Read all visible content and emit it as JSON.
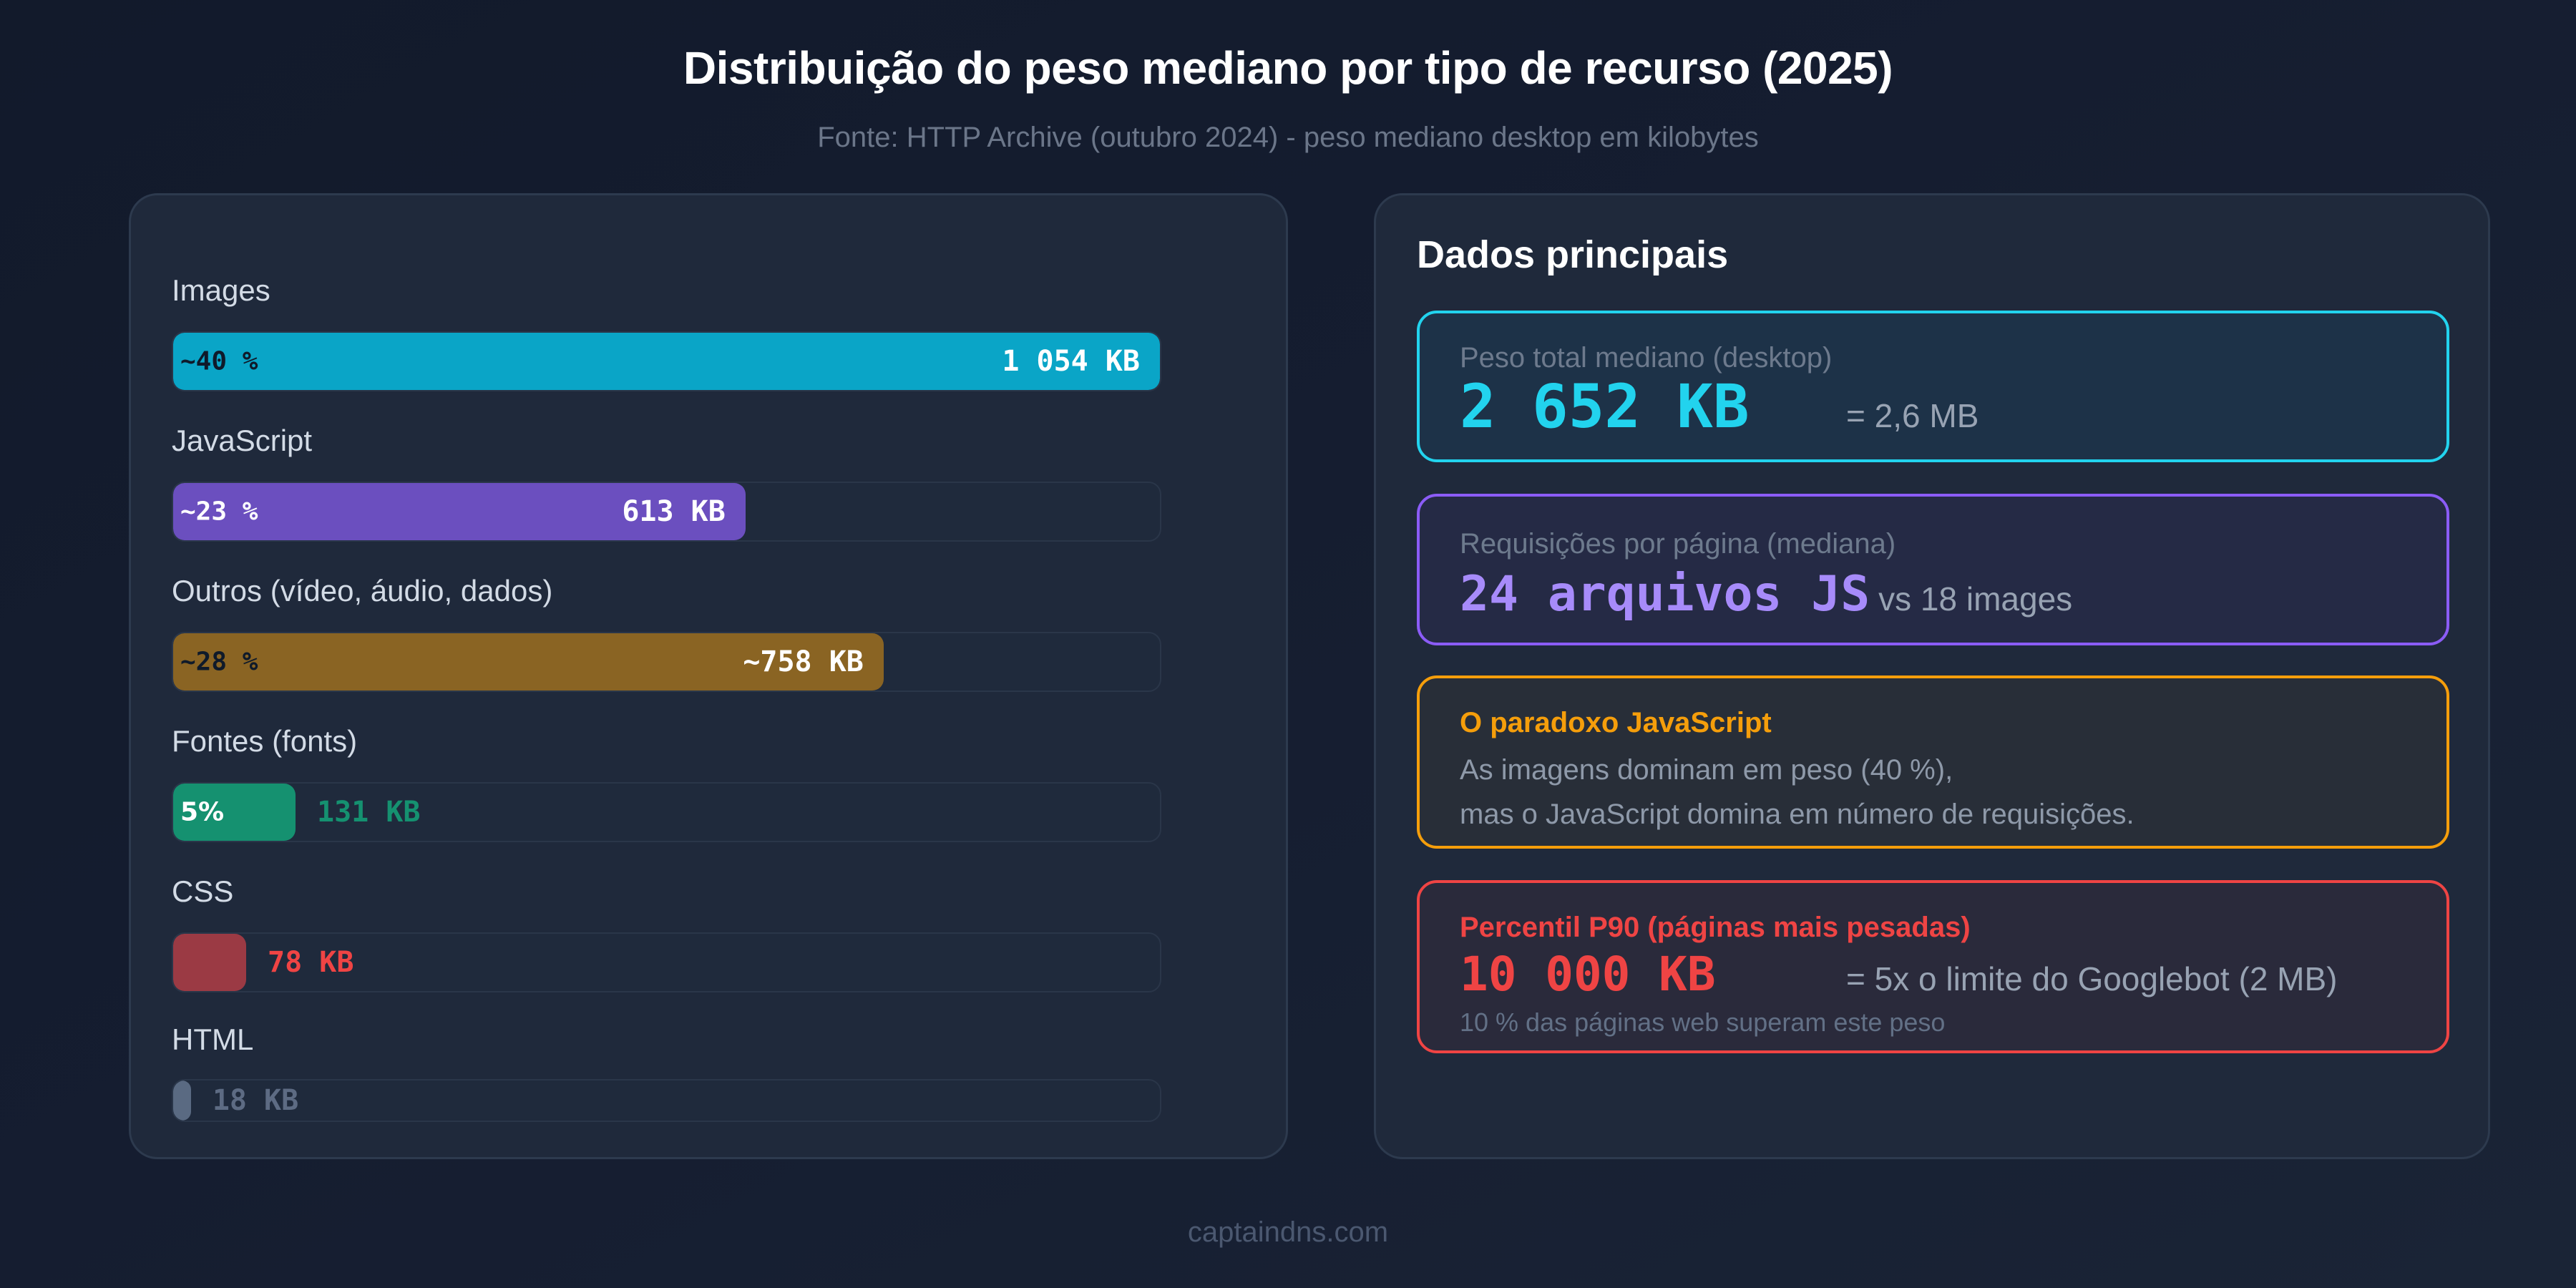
{
  "header": {
    "title": "Distribuição do peso mediano por tipo de recurso (2025)",
    "subtitle": "Fonte: HTTP Archive (outubro 2024) - peso mediano desktop em kilobytes"
  },
  "chart_data": {
    "type": "bar",
    "orientation": "horizontal",
    "title": "Distribuição do peso mediano por tipo de recurso (2025)",
    "subtitle": "Fonte: HTTP Archive (outubro 2024) - peso mediano desktop em kilobytes",
    "categories": [
      "Images",
      "JavaScript",
      "Outros (vídeo, áudio, dados)",
      "Fontes (fonts)",
      "CSS",
      "HTML"
    ],
    "values": [
      1054,
      613,
      758,
      131,
      78,
      18
    ],
    "unit": "KB",
    "percent_labels": [
      "~40 %",
      "~23 %",
      "~28 %",
      "5%",
      "",
      ""
    ],
    "value_labels": [
      "1 054 KB",
      "613 KB",
      "~758 KB",
      "131 KB",
      "78 KB",
      "18 KB"
    ],
    "colors": [
      "#0aa5c7",
      "#6b4fbf",
      "#8a6423",
      "#159170",
      "#9b3a44",
      "#5a6a82"
    ],
    "xlabel": "",
    "ylabel": "",
    "grid": false,
    "legend": "none"
  },
  "bars": [
    {
      "label": "Images",
      "pct": "~40 %",
      "value": "1 054 KB",
      "fill_pct": 100,
      "color": "#0aa5c7",
      "pct_color": "#0f1a2a",
      "value_color": "#ffffff",
      "value_inside": true
    },
    {
      "label": "JavaScript",
      "pct": "~23 %",
      "value": "613 KB",
      "fill_pct": 58,
      "color": "#6b4fbf",
      "pct_color": "#ffffff",
      "value_color": "#ffffff",
      "value_inside": true
    },
    {
      "label": "Outros (vídeo, áudio, dados)",
      "pct": "~28 %",
      "value": "~758 KB",
      "fill_pct": 72,
      "color": "#8a6423",
      "pct_color": "#0f1a2a",
      "value_color": "#ffffff",
      "value_inside": true
    },
    {
      "label": "Fontes (fonts)",
      "pct": "5%",
      "value": "131 KB",
      "fill_pct": 12.4,
      "color": "#159170",
      "pct_color": "#ffffff",
      "value_color": "#159170",
      "value_inside": false
    },
    {
      "label": "CSS",
      "pct": "",
      "value": "78 KB",
      "fill_pct": 7.4,
      "color": "#9b3a44",
      "pct_color": "#ffffff",
      "value_color": "#ef4444",
      "value_inside": false
    },
    {
      "label": "HTML",
      "pct": "",
      "value": "18 KB",
      "fill_pct": 1.8,
      "color": "#5a6a82",
      "pct_color": "#ffffff",
      "value_color": "#5d6b83",
      "value_inside": false
    }
  ],
  "key_data": {
    "heading": "Dados principais",
    "total": {
      "label": "Peso total mediano (desktop)",
      "value": "2 652 KB",
      "equiv": "= 2,6 MB",
      "color": "#22d3ee"
    },
    "requests": {
      "label": "Requisições por página (mediana)",
      "value": "24 arquivos JS",
      "compare": "vs 18 images",
      "color": "#a78bfa"
    },
    "paradox": {
      "title": "O paradoxo JavaScript",
      "line1": "As imagens dominam em peso (40 %),",
      "line2": "mas o JavaScript domina em número de requisições.",
      "color": "#f59e0b"
    },
    "p90": {
      "title": "Percentil P90 (páginas mais pesadas)",
      "value": "10 000 KB",
      "equiv": "= 5x o limite do Googlebot (2 MB)",
      "note": "10 % das páginas web superam este peso",
      "color": "#ef4444"
    }
  },
  "footer": {
    "brand": "captaindns.com"
  }
}
